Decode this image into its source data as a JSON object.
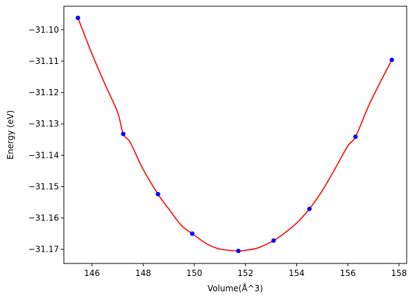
{
  "chart_data": {
    "type": "scatter",
    "xlabel": "Volume(Å^3)",
    "ylabel": "Energy (eV)",
    "xlim": [
      144.9,
      158.3
    ],
    "ylim": [
      -31.1745,
      -31.0925
    ],
    "xticks": [
      146,
      148,
      150,
      152,
      154,
      156,
      158
    ],
    "xtick_labels": [
      "146",
      "148",
      "150",
      "152",
      "154",
      "156",
      "158"
    ],
    "yticks": [
      -31.1,
      -31.11,
      -31.12,
      -31.13,
      -31.14,
      -31.15,
      -31.16,
      -31.17
    ],
    "ytick_labels": [
      "−31.10",
      "−31.11",
      "−31.12",
      "−31.13",
      "−31.14",
      "−31.15",
      "−31.16",
      "−31.17"
    ],
    "grid": false,
    "series": [
      {
        "kind": "points",
        "color": "#0000ff",
        "x": [
          145.45,
          147.22,
          148.58,
          149.92,
          151.72,
          153.1,
          154.5,
          156.3,
          157.72
        ],
        "y": [
          -31.0962,
          -31.1332,
          -31.1524,
          -31.165,
          -31.1705,
          -31.1672,
          -31.1571,
          -31.1341,
          -31.1096
        ]
      },
      {
        "kind": "fit-curve",
        "color": "#ff0000",
        "x": [
          145.45,
          146.0,
          146.5,
          147.0,
          147.22,
          147.5,
          148.0,
          148.58,
          149.0,
          149.5,
          149.92,
          150.5,
          151.0,
          151.72,
          152.0,
          152.5,
          153.1,
          153.5,
          154.0,
          154.5,
          155.0,
          155.5,
          156.0,
          156.3,
          156.8,
          157.2,
          157.72
        ],
        "y": [
          -31.0962,
          -31.1077,
          -31.1172,
          -31.1263,
          -31.1332,
          -31.136,
          -31.1445,
          -31.1524,
          -31.1571,
          -31.1624,
          -31.165,
          -31.1683,
          -31.1699,
          -31.1705,
          -31.1703,
          -31.1695,
          -31.1672,
          -31.165,
          -31.1616,
          -31.1571,
          -31.1513,
          -31.1443,
          -31.137,
          -31.1341,
          -31.1245,
          -31.1178,
          -31.1096
        ]
      }
    ]
  }
}
